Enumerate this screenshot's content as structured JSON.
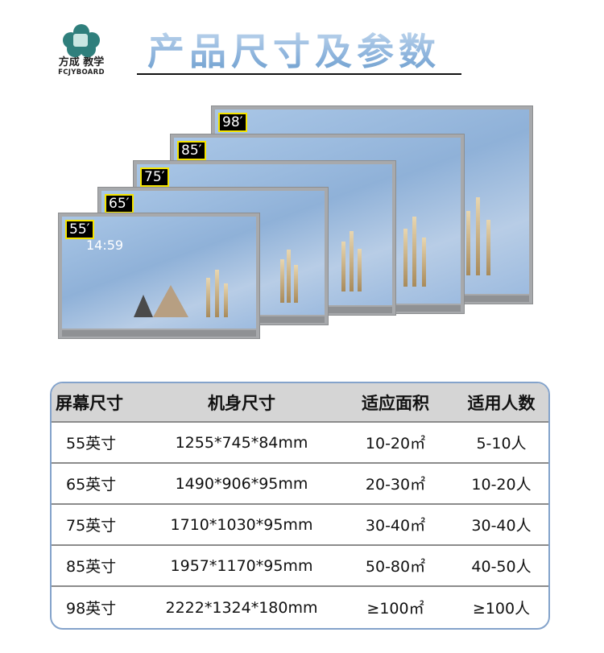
{
  "logo": {
    "cn": "方成 教学",
    "en": "FCJYBOARD"
  },
  "title": "产品尺寸及参数",
  "screens": [
    {
      "label": "98′",
      "clock": ""
    },
    {
      "label": "85′",
      "clock": ""
    },
    {
      "label": "75′",
      "clock": ""
    },
    {
      "label": "65′",
      "clock": ""
    },
    {
      "label": "55′",
      "clock": "14:59"
    }
  ],
  "table": {
    "headers": [
      "屏幕尺寸",
      "机身尺寸",
      "适应面积",
      "适用人数"
    ],
    "rows": [
      [
        "55英寸",
        "1255*745*84mm",
        "10-20㎡",
        "5-10人"
      ],
      [
        "65英寸",
        "1490*906*95mm",
        "20-30㎡",
        "10-20人"
      ],
      [
        "75英寸",
        "1710*1030*95mm",
        "30-40㎡",
        "30-40人"
      ],
      [
        "85英寸",
        "1957*1170*95mm",
        "50-80㎡",
        "40-50人"
      ],
      [
        "98英寸",
        "2222*1324*180mm",
        "≥100㎡",
        "≥100人"
      ]
    ]
  }
}
